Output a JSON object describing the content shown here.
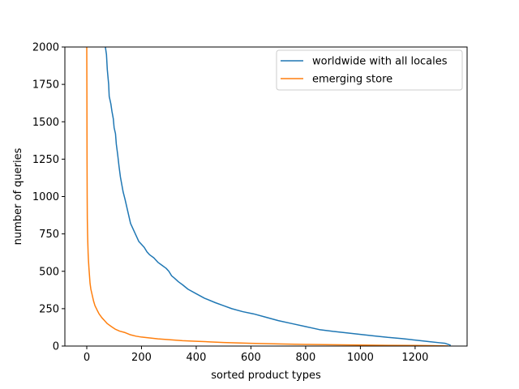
{
  "chart_data": {
    "type": "line",
    "title": "",
    "xlabel": "sorted product types",
    "ylabel": "number of queries",
    "xlim": [
      -80,
      1390
    ],
    "ylim": [
      0,
      2000
    ],
    "xticks": [
      0,
      200,
      400,
      600,
      800,
      1000,
      1200
    ],
    "yticks": [
      0,
      250,
      500,
      750,
      1000,
      1250,
      1500,
      1750,
      2000
    ],
    "grid": false,
    "legend_position": "top-right",
    "series": [
      {
        "name": "worldwide with all locales",
        "color": "#1f77b4",
        "points": [
          [
            68,
            2000
          ],
          [
            72,
            1950
          ],
          [
            75,
            1850
          ],
          [
            80,
            1750
          ],
          [
            82,
            1670
          ],
          [
            88,
            1620
          ],
          [
            92,
            1570
          ],
          [
            97,
            1520
          ],
          [
            100,
            1460
          ],
          [
            105,
            1420
          ],
          [
            108,
            1350
          ],
          [
            113,
            1280
          ],
          [
            118,
            1200
          ],
          [
            123,
            1130
          ],
          [
            128,
            1080
          ],
          [
            133,
            1030
          ],
          [
            140,
            980
          ],
          [
            145,
            940
          ],
          [
            150,
            900
          ],
          [
            155,
            860
          ],
          [
            160,
            820
          ],
          [
            170,
            780
          ],
          [
            180,
            740
          ],
          [
            190,
            700
          ],
          [
            200,
            680
          ],
          [
            210,
            660
          ],
          [
            220,
            630
          ],
          [
            230,
            610
          ],
          [
            245,
            590
          ],
          [
            260,
            560
          ],
          [
            275,
            540
          ],
          [
            290,
            520
          ],
          [
            300,
            500
          ],
          [
            310,
            470
          ],
          [
            320,
            455
          ],
          [
            335,
            430
          ],
          [
            350,
            410
          ],
          [
            370,
            380
          ],
          [
            400,
            350
          ],
          [
            430,
            320
          ],
          [
            470,
            290
          ],
          [
            500,
            270
          ],
          [
            530,
            250
          ],
          [
            570,
            230
          ],
          [
            610,
            215
          ],
          [
            650,
            195
          ],
          [
            700,
            170
          ],
          [
            750,
            150
          ],
          [
            800,
            130
          ],
          [
            850,
            110
          ],
          [
            900,
            98
          ],
          [
            950,
            88
          ],
          [
            1000,
            78
          ],
          [
            1050,
            68
          ],
          [
            1100,
            58
          ],
          [
            1150,
            50
          ],
          [
            1200,
            40
          ],
          [
            1250,
            30
          ],
          [
            1290,
            22
          ],
          [
            1310,
            18
          ],
          [
            1320,
            12
          ],
          [
            1330,
            5
          ]
        ]
      },
      {
        "name": "emerging store",
        "color": "#ff7f0e",
        "points": [
          [
            0,
            2000
          ],
          [
            0.5,
            1700
          ],
          [
            1,
            1250
          ],
          [
            1.5,
            1000
          ],
          [
            2,
            850
          ],
          [
            3,
            750
          ],
          [
            4,
            680
          ],
          [
            5,
            620
          ],
          [
            6,
            580
          ],
          [
            8,
            520
          ],
          [
            10,
            470
          ],
          [
            12,
            420
          ],
          [
            15,
            380
          ],
          [
            20,
            340
          ],
          [
            25,
            300
          ],
          [
            30,
            270
          ],
          [
            38,
            240
          ],
          [
            45,
            215
          ],
          [
            55,
            190
          ],
          [
            65,
            170
          ],
          [
            75,
            150
          ],
          [
            90,
            130
          ],
          [
            105,
            112
          ],
          [
            120,
            100
          ],
          [
            140,
            90
          ],
          [
            160,
            75
          ],
          [
            180,
            66
          ],
          [
            200,
            60
          ],
          [
            230,
            54
          ],
          [
            260,
            48
          ],
          [
            300,
            43
          ],
          [
            350,
            36
          ],
          [
            400,
            32
          ],
          [
            450,
            28
          ],
          [
            500,
            24
          ],
          [
            550,
            21
          ],
          [
            600,
            18
          ],
          [
            700,
            14
          ],
          [
            800,
            11
          ],
          [
            900,
            9
          ],
          [
            1000,
            7
          ],
          [
            1100,
            5
          ],
          [
            1200,
            4
          ],
          [
            1260,
            3
          ],
          [
            1320,
            1
          ]
        ]
      }
    ]
  }
}
